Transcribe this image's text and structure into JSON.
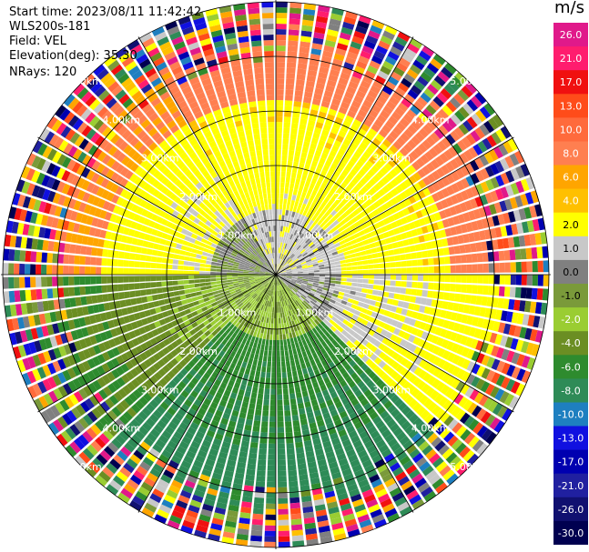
{
  "header": {
    "start_time": "Start time: 2023/08/11 11:42:42",
    "instrument": "WLS200s-181",
    "field": "Field: VEL",
    "elevation": "Elevation(deg): 35.30",
    "nrays": "NRays: 120"
  },
  "chart_data": {
    "type": "heatmap",
    "projection": "polar-ppi",
    "field": "VEL",
    "unit": "m/s",
    "nrays": 120,
    "elevation_deg": 35.3,
    "range_rings_km": [
      1,
      2,
      3,
      4,
      5
    ],
    "range_ring_labels": [
      "1.00km",
      "2.00km",
      "3.00km",
      "4.00km",
      "5.00km"
    ],
    "radial_spokes_deg": [
      0,
      30,
      60,
      90,
      120,
      150,
      180,
      210,
      240,
      270,
      300,
      330
    ],
    "colorbar": {
      "labels": [
        "26.0",
        "21.0",
        "17.0",
        "13.0",
        "10.0",
        "8.0",
        "6.0",
        "4.0",
        "2.0",
        "1.0",
        "0.0",
        "-1.0",
        "-2.0",
        "-4.0",
        "-6.0",
        "-8.0",
        "-10.0",
        "-13.0",
        "-17.0",
        "-21.0",
        "-26.0",
        "-30.0"
      ],
      "colors": [
        "#e0198a",
        "#ff1d6e",
        "#f01010",
        "#ff4c1a",
        "#ff6a3c",
        "#ff7f50",
        "#ffa500",
        "#ffc000",
        "#ffff00",
        "#c8c8c8",
        "#808080",
        "#7a9a3a",
        "#9acd32",
        "#6b8e23",
        "#2e8b2e",
        "#2e8b57",
        "#1e7fc0",
        "#1010e0",
        "#0000b0",
        "#2020a0",
        "#101070",
        "#000050"
      ]
    },
    "velocity_by_range_note": "",
    "sector_pattern": [
      {
        "from_deg": 330,
        "to_deg": 90,
        "near": 1.5,
        "mid": 2.5,
        "far": 9.0
      },
      {
        "from_deg": 90,
        "to_deg": 135,
        "near": 0.5,
        "mid": 1.5,
        "far": 3.0
      },
      {
        "from_deg": 135,
        "to_deg": 225,
        "near": -2.0,
        "mid": -5.0,
        "far": -7.0
      },
      {
        "from_deg": 225,
        "to_deg": 270,
        "near": -1.0,
        "mid": -2.0,
        "far": -4.0
      },
      {
        "from_deg": 270,
        "to_deg": 330,
        "near": 0.0,
        "mid": 2.0,
        "far": 8.0
      }
    ]
  }
}
